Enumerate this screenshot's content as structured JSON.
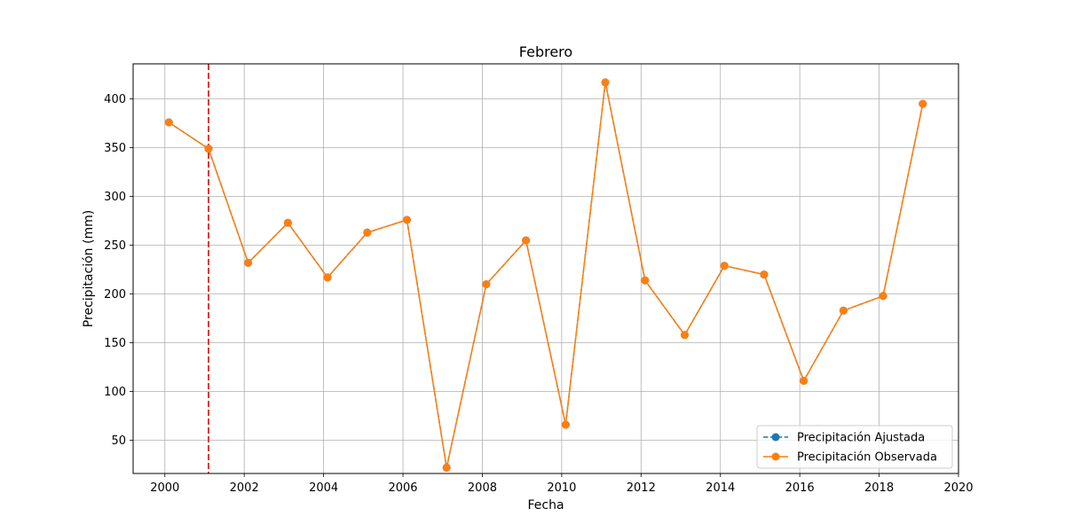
{
  "chart_data": {
    "type": "line",
    "title": "Febrero",
    "xlabel": "Fecha",
    "ylabel": "Precipitación (mm)",
    "xlim": [
      1999.2,
      2020.0
    ],
    "ylim": [
      16,
      436
    ],
    "xticks": [
      2000,
      2002,
      2004,
      2006,
      2008,
      2010,
      2012,
      2014,
      2016,
      2018,
      2020
    ],
    "yticks": [
      50,
      100,
      150,
      200,
      250,
      300,
      350,
      400
    ],
    "grid": true,
    "legend_position": "lower right",
    "vline": {
      "x": 2001.1,
      "color": "#d62728",
      "style": "dashed"
    },
    "x": [
      2000.1,
      2001.1,
      2002.1,
      2003.1,
      2004.1,
      2005.1,
      2006.1,
      2007.1,
      2008.1,
      2009.1,
      2010.1,
      2011.1,
      2012.1,
      2013.1,
      2014.1,
      2015.1,
      2016.1,
      2017.1,
      2018.1,
      2019.1
    ],
    "series": [
      {
        "name": "Precipitación Ajustada",
        "color": "#1f77b4",
        "style": "dashed",
        "values": [
          376,
          349,
          232,
          273,
          217,
          263,
          276,
          22,
          210,
          255,
          66,
          417,
          214,
          158,
          229,
          220,
          111,
          183,
          198,
          395
        ]
      },
      {
        "name": "Precipitación Observada",
        "color": "#ff7f0e",
        "style": "solid",
        "values": [
          376,
          349,
          232,
          273,
          217,
          263,
          276,
          22,
          210,
          255,
          66,
          417,
          214,
          158,
          229,
          220,
          111,
          183,
          198,
          395
        ]
      }
    ]
  }
}
